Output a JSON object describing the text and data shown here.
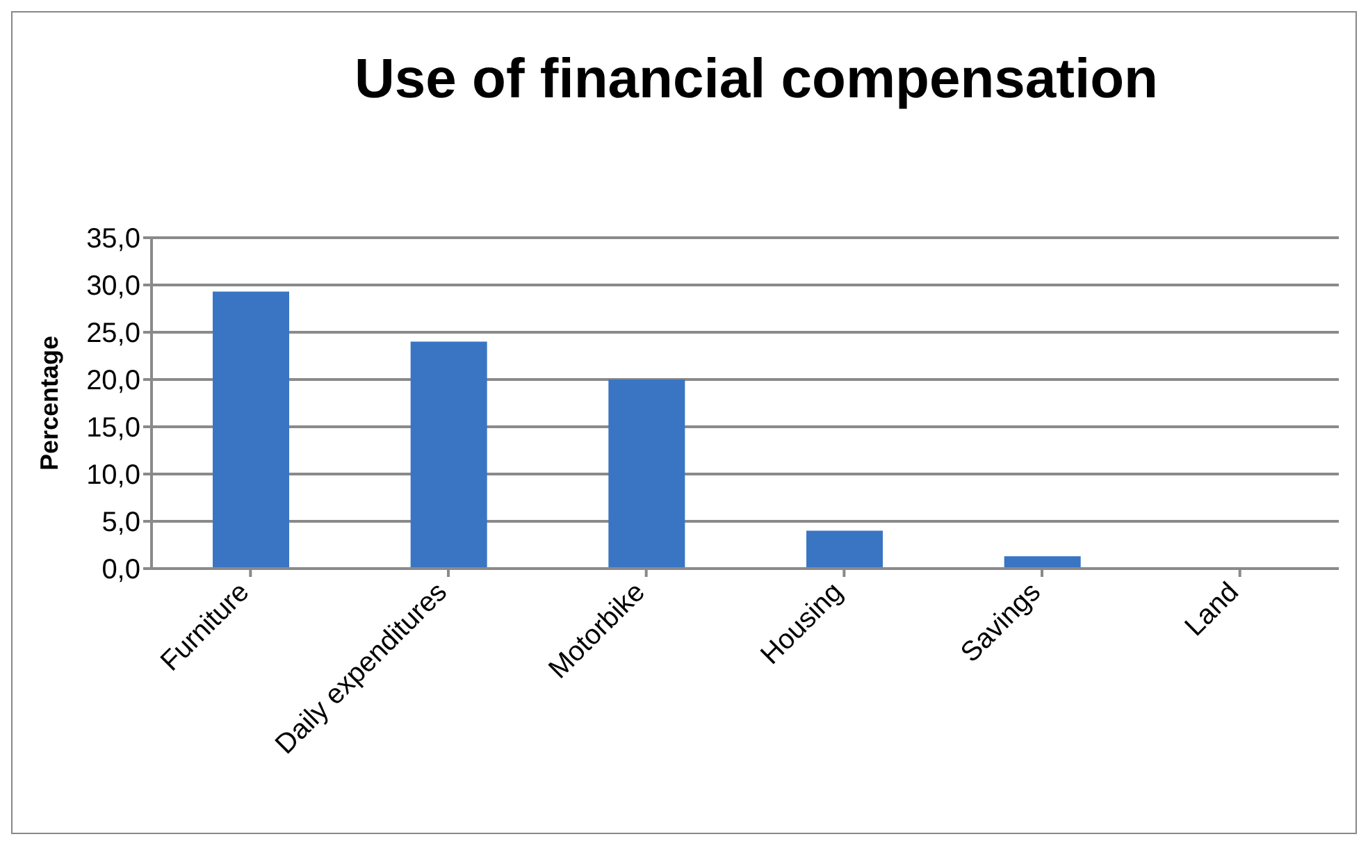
{
  "chart_data": {
    "type": "bar",
    "title": "Use of financial compensation",
    "ylabel": "Percentage",
    "categories": [
      "Furniture",
      "Daily expenditures",
      "Motorbike",
      "Housing",
      "Savings",
      "Land"
    ],
    "values": [
      29.3,
      24.0,
      20.0,
      4.0,
      1.3,
      0
    ],
    "color": "#3a75c4",
    "ylim": [
      0,
      35
    ],
    "yticks": [
      {
        "value": 0,
        "label": "0,0"
      },
      {
        "value": 5,
        "label": "5,0"
      },
      {
        "value": 10,
        "label": "10,0"
      },
      {
        "value": 15,
        "label": "15,0"
      },
      {
        "value": 20,
        "label": "20,0"
      },
      {
        "value": 25,
        "label": "25,0"
      },
      {
        "value": 30,
        "label": "30,0"
      },
      {
        "value": 35,
        "label": "35,0"
      }
    ],
    "grid": "y",
    "legend": false
  }
}
